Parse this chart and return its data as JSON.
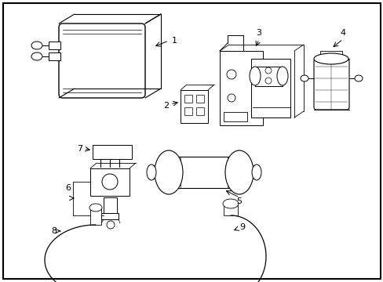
{
  "background_color": "#ffffff",
  "border_color": "#000000",
  "line_color": "#000000",
  "figsize": [
    4.89,
    3.6
  ],
  "dpi": 100
}
